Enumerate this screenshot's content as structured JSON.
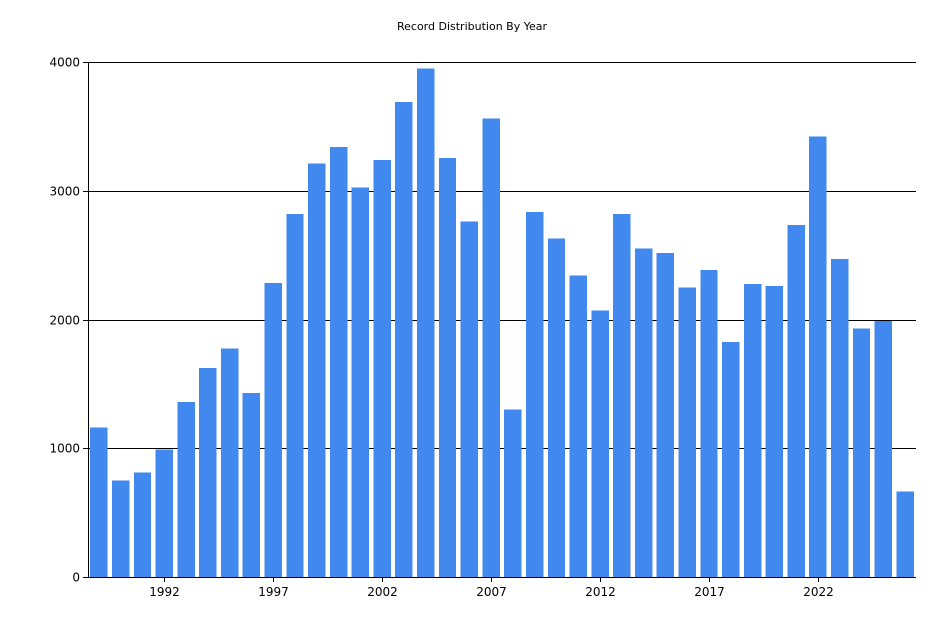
{
  "chart_data": {
    "type": "bar",
    "title": "Record Distribution By Year",
    "xlabel": "",
    "ylabel": "",
    "categories": [
      1989,
      1990,
      1991,
      1992,
      1993,
      1994,
      1995,
      1996,
      1997,
      1998,
      1999,
      2000,
      2001,
      2002,
      2003,
      2004,
      2005,
      2006,
      2007,
      2008,
      2009,
      2010,
      2011,
      2012,
      2013,
      2014,
      2015,
      2016,
      2017,
      2018,
      2019,
      2020,
      2021,
      2022,
      2023,
      2024,
      2025,
      2026
    ],
    "values": [
      1160,
      750,
      810,
      990,
      1360,
      1625,
      1775,
      1430,
      2285,
      2820,
      3210,
      3340,
      3025,
      3240,
      3690,
      3950,
      3255,
      2760,
      3560,
      1300,
      2835,
      2630,
      2340,
      2070,
      2820,
      2550,
      2515,
      2250,
      2385,
      1825,
      2275,
      2260,
      2735,
      3420,
      2470,
      1930,
      1990,
      665
    ],
    "x_tick_labels": [
      "1992",
      "1997",
      "2002",
      "2007",
      "2012",
      "2017",
      "2022"
    ],
    "y_tick_labels": [
      "0",
      "1000",
      "2000",
      "3000",
      "4000"
    ],
    "ylim": [
      0,
      4000
    ],
    "bar_color": "#4189EE",
    "grid": true,
    "legend": "none"
  }
}
